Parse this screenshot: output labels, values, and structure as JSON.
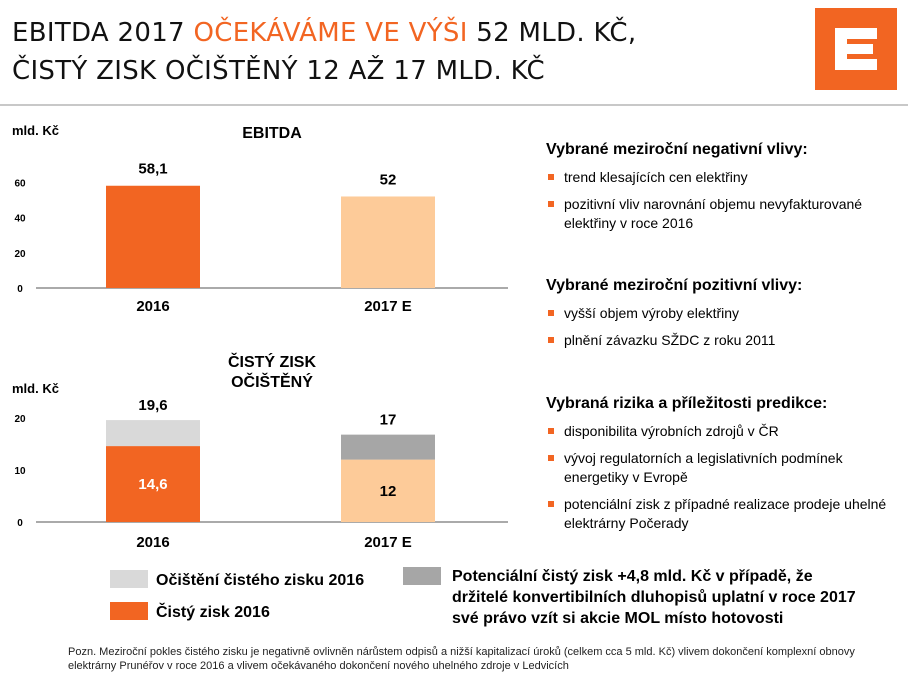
{
  "header": {
    "title_part1": "EBITDA 2017 ",
    "title_highlight": "OČEKÁVÁME VE VÝŠI",
    "title_part2": " 52 MLD. KČ,",
    "title_line2": "ČISTÝ ZISK OČIŠTĚNÝ 12 AŽ 17 MLD. KČ"
  },
  "colors": {
    "accent": "#f26522",
    "light_orange": "#fdcb99",
    "light_gray": "#d9d9d9",
    "dark_gray": "#a6a6a6"
  },
  "chart_data": [
    {
      "type": "bar",
      "title": "EBITDA",
      "ylabel": "mld. Kč",
      "categories": [
        "2016",
        "2017 E"
      ],
      "values": [
        58.1,
        52
      ],
      "value_labels": [
        "58,1",
        "52"
      ],
      "yticks": [
        "0",
        "20",
        "40",
        "60"
      ],
      "ylim": [
        0,
        70
      ]
    },
    {
      "type": "bar",
      "stacked": true,
      "title_line1": "ČISTÝ ZISK",
      "title_line2": "OČIŠTĚNÝ",
      "ylabel": "mld. Kč",
      "categories": [
        "2016",
        "2017 E"
      ],
      "series": [
        {
          "values": [
            14.6,
            12
          ],
          "value_labels": [
            "14,6",
            "12"
          ]
        },
        {
          "values": [
            5.0,
            4.8
          ]
        }
      ],
      "totals": [
        19.6,
        17
      ],
      "total_labels": [
        "19,6",
        "17"
      ],
      "yticks": [
        "0",
        "10",
        "20"
      ],
      "ylim": [
        0,
        23
      ]
    }
  ],
  "legend": {
    "item1": "Očištění čistého zisku 2016",
    "item2": "Čistý zisk 2016",
    "item3": "Potenciální čistý zisk +4,8 mld. Kč v případě, že držitelé konvertibilních dluhopisů uplatní v roce 2017 své právo vzít si akcie MOL místo hotovosti"
  },
  "right_panel": {
    "negative": {
      "heading": "Vybrané meziroční negativní vlivy:",
      "items": [
        "trend klesajících cen elektřiny",
        "pozitivní vliv narovnání objemu nevyfakturované elektřiny v roce 2016"
      ]
    },
    "positive": {
      "heading": "Vybrané meziroční pozitivní vlivy:",
      "items": [
        "vyšší objem výroby elektřiny",
        "plnění závazku SŽDC z roku 2011"
      ]
    },
    "risks": {
      "heading": "Vybraná rizika a příležitosti predikce:",
      "items": [
        "disponibilita výrobních zdrojů v ČR",
        "vývoj regulatorních a legislativních podmínek energetiky v Evropě",
        "potenciální zisk z případné realizace prodeje uhelné elektrárny Počerady"
      ]
    }
  },
  "footnote": "Pozn. Meziroční pokles čistého zisku je negativně ovlivněn nárůstem odpisů a nižší kapitalizací úroků (celkem cca 5 mld. Kč) vlivem dokončení komplexní obnovy elektrárny Prunéřov v roce 2016 a vlivem očekávaného dokončení nového uhelného zdroje v Ledvicích"
}
